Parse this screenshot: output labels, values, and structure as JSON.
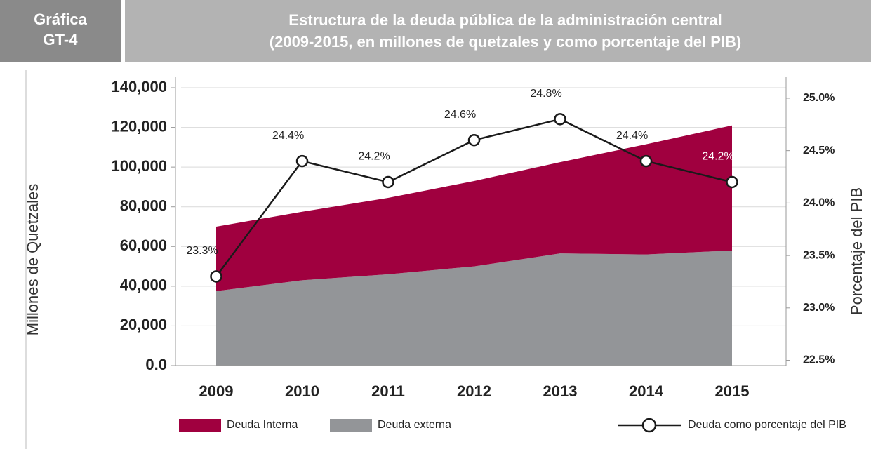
{
  "chart_data": {
    "type": "stacked_area_line",
    "figure_label": [
      "Gráfica",
      "GT-4"
    ],
    "title": "Estructura de la deuda pública de la administración central",
    "subtitle": "(2009-2015, en millones de quetzales y como porcentaje del PIB)",
    "y_label": "Millones de Quetzales",
    "y2_label": "Porcentaje del PIB",
    "categories": [
      "2009",
      "2010",
      "2011",
      "2012",
      "2013",
      "2014",
      "2015"
    ],
    "series": [
      {
        "name": "Deuda externa",
        "color": "#939598",
        "values": [
          37500,
          43000,
          46000,
          50000,
          56500,
          56000,
          58000
        ]
      },
      {
        "name": "Deuda Interna",
        "color": "#a0003f",
        "values": [
          32500,
          34500,
          38500,
          43000,
          46000,
          55500,
          63000
        ]
      },
      {
        "name": "Deuda como porcentaje del PIB",
        "color": "#1a1a1a",
        "axis": "y2",
        "values": [
          23.3,
          24.4,
          24.2,
          24.6,
          24.8,
          24.4,
          24.2
        ],
        "value_labels": [
          "23.3%",
          "24.4%",
          "24.2%",
          "24.6%",
          "24.8%",
          "24.4%",
          "24.2%"
        ]
      }
    ],
    "legend_order": [
      1,
      0,
      2
    ],
    "ylim": [
      0,
      140000
    ],
    "yticks": [
      {
        "value": 0,
        "label": "0.0"
      },
      {
        "value": 20000,
        "label": "20,000"
      },
      {
        "value": 40000,
        "label": "40,000"
      },
      {
        "value": 60000,
        "label": "60,000"
      },
      {
        "value": 80000,
        "label": "80,000"
      },
      {
        "value": 100000,
        "label": "100,000"
      },
      {
        "value": 120000,
        "label": "120,000"
      },
      {
        "value": 140000,
        "label": "140,000"
      }
    ],
    "y2lim": [
      22.45,
      25.1
    ],
    "y2ticks": [
      {
        "value": 22.5,
        "label": "22.5%"
      },
      {
        "value": 23,
        "label": "23.0%"
      },
      {
        "value": 23.5,
        "label": "23.5%"
      },
      {
        "value": 24,
        "label": "24.0%"
      },
      {
        "value": 24.5,
        "label": "24.5%"
      },
      {
        "value": 25,
        "label": "25.0%"
      }
    ],
    "grid": true
  }
}
